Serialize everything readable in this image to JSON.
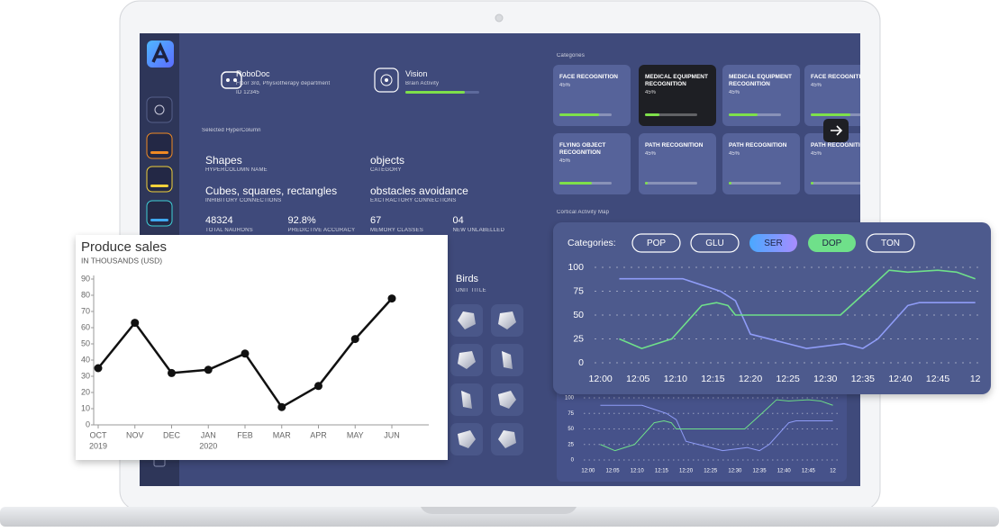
{
  "dashboard": {
    "robot": {
      "name": "RoboDoc",
      "location": "Floor 3rd, Physiotherapy department",
      "id": "ID 12345"
    },
    "vision": {
      "name": "Vision",
      "subtitle": "Brain Activity"
    },
    "hypercolumn": {
      "heading": "Selected HyperColumn",
      "fields": [
        {
          "value": "Shapes",
          "label": "HYPERCOLUMN NAME"
        },
        {
          "value": "objects",
          "label": "CATEGORY"
        },
        {
          "value": "Cubes, squares, rectangles",
          "label": "INHIBITORY CONNECTIONS"
        },
        {
          "value": "obstacles avoidance",
          "label": "EXCTRACTORY CONNECTIONS"
        }
      ],
      "stats": [
        {
          "value": "48324",
          "label": "TOTAL NAURONS"
        },
        {
          "value": "92.8%",
          "label": "PREDICTIVE ACCURACY"
        },
        {
          "value": "67",
          "label": "MEMORY CLASSES"
        },
        {
          "value": "04",
          "label": "NEW UNLABELLED"
        }
      ]
    },
    "unit": {
      "title": "Birds",
      "label": "UNIT TITLE"
    },
    "categories": {
      "heading": "Categories",
      "cards": [
        {
          "title": "FACE RECOGNITION",
          "value": "45%"
        },
        {
          "title": "MEDICAL EQUIPMENT RECOGNITION",
          "value": "45%"
        },
        {
          "title": "MEDICAL EQUIPMENT RECOGNITION",
          "value": "45%"
        },
        {
          "title": "FACE RECOGNITION",
          "value": "45%"
        },
        {
          "title": "FLYING OBJECT RECOGNITION",
          "value": "45%"
        },
        {
          "title": "PATH RECOGNITION",
          "value": "45%"
        },
        {
          "title": "PATH RECOGNITION",
          "value": "45%"
        },
        {
          "title": "PATH RECOGNITION",
          "value": "45%"
        }
      ]
    },
    "activity_heading": "Cortical Activity Map"
  },
  "chart_data": [
    {
      "type": "line",
      "title": "Produce sales",
      "subtitle": "IN THOUSANDS (USD)",
      "categories": [
        "OCT",
        "NOV",
        "DEC",
        "JAN",
        "FEB",
        "MAR",
        "APR",
        "MAY",
        "JUN"
      ],
      "category_years": [
        "2019",
        null,
        null,
        "2020",
        null,
        null,
        null,
        null,
        null
      ],
      "values": [
        35,
        63,
        32,
        34,
        44,
        11,
        24,
        53,
        78
      ],
      "color": "#111111",
      "ylim": [
        0,
        90
      ],
      "yticks": [
        0,
        10,
        20,
        30,
        40,
        50,
        60,
        70,
        80,
        90
      ]
    },
    {
      "type": "line",
      "legend_label": "Categories:",
      "inactive_before": [
        "POP",
        "GLU"
      ],
      "inactive_after": [
        "TON"
      ],
      "series": [
        {
          "name": "SER",
          "color": "#8f9cf7",
          "x": [
            2.5,
            11,
            16,
            18,
            20,
            27.5,
            32.5,
            35,
            37,
            41,
            42.5,
            50
          ],
          "values": [
            88,
            88,
            75,
            65,
            30,
            15,
            20,
            15,
            25,
            60,
            63,
            63
          ]
        },
        {
          "name": "DOP",
          "color": "#6fe08a",
          "x": [
            2.5,
            5.5,
            9.5,
            13.5,
            15.5,
            17,
            18,
            32,
            35.5,
            38.5,
            41,
            45,
            47.5,
            50
          ],
          "values": [
            25,
            15,
            25,
            60,
            63,
            60,
            50,
            50,
            75,
            97,
            95,
            97,
            95,
            88
          ]
        }
      ],
      "xlim": [
        -2,
        51
      ],
      "xticks": [
        {
          "value": 0,
          "label": "12:00"
        },
        {
          "value": 5,
          "label": "12:05"
        },
        {
          "value": 10,
          "label": "12:10"
        },
        {
          "value": 15,
          "label": "12:15"
        },
        {
          "value": 20,
          "label": "12:20"
        },
        {
          "value": 25,
          "label": "12:25"
        },
        {
          "value": 30,
          "label": "12:30"
        },
        {
          "value": 35,
          "label": "12:35"
        },
        {
          "value": 40,
          "label": "12:40"
        },
        {
          "value": 45,
          "label": "12:45"
        },
        {
          "value": 50,
          "label": "12"
        }
      ],
      "ylim": [
        0,
        100
      ],
      "yticks": [
        0,
        25,
        50,
        75,
        100
      ],
      "grid": true
    }
  ]
}
